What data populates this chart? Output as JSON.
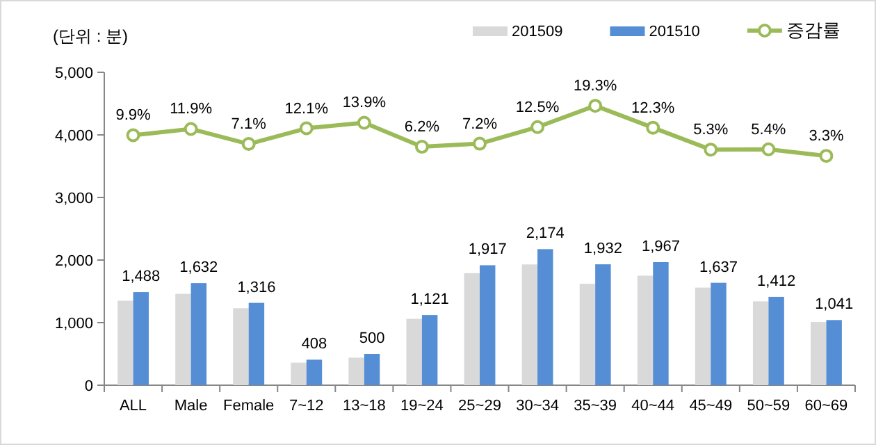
{
  "chart_data": {
    "type": "bar",
    "ylabel": "(단위 : 분)",
    "categories": [
      "ALL",
      "Male",
      "Female",
      "7~12",
      "13~18",
      "19~24",
      "25~29",
      "30~34",
      "35~39",
      "40~44",
      "45~49",
      "50~59",
      "60~69"
    ],
    "series": [
      {
        "name": "201509",
        "color": "#d9d9d9",
        "values": [
          1350,
          1460,
          1230,
          360,
          440,
          1060,
          1790,
          1930,
          1620,
          1750,
          1560,
          1340,
          1010
        ]
      },
      {
        "name": "201510",
        "color": "#558ed5",
        "values": [
          1488,
          1632,
          1316,
          408,
          500,
          1121,
          1917,
          2174,
          1932,
          1967,
          1637,
          1412,
          1041
        ],
        "value_labels": [
          "1,488",
          "1,632",
          "1,316",
          "408",
          "500",
          "1,121",
          "1,917",
          "2,174",
          "1,932",
          "1,967",
          "1,637",
          "1,412",
          "1,041"
        ]
      },
      {
        "name": "증감률",
        "type": "line",
        "axis": "y2",
        "color": "#9bbb59",
        "marker": "circle",
        "values": [
          9.9,
          11.9,
          7.1,
          12.1,
          13.9,
          6.2,
          7.2,
          12.5,
          19.3,
          12.3,
          5.3,
          5.4,
          3.3
        ],
        "value_labels": [
          "9.9%",
          "11.9%",
          "7.1%",
          "12.1%",
          "13.9%",
          "6.2%",
          "7.2%",
          "12.5%",
          "19.3%",
          "12.3%",
          "5.3%",
          "5.4%",
          "3.3%"
        ]
      }
    ],
    "ylim": [
      0,
      5000
    ],
    "yticks": [
      {
        "value": 0,
        "label": "0"
      },
      {
        "value": 1000,
        "label": "1,000"
      },
      {
        "value": 2000,
        "label": "2,000"
      },
      {
        "value": 3000,
        "label": "3,000"
      },
      {
        "value": 4000,
        "label": "4,000"
      },
      {
        "value": 5000,
        "label": "5,000"
      }
    ],
    "y2lim": [
      -70,
      30
    ],
    "legend": "top right"
  }
}
